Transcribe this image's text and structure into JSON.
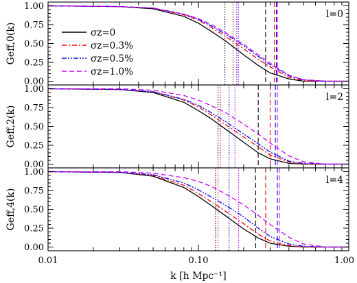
{
  "chart_data": {
    "type": "line",
    "xscale": "log",
    "xlim": [
      0.01,
      1.0
    ],
    "ylim": [
      -0.05,
      1.05
    ],
    "xlabel": "k [h Mpc⁻¹]",
    "xticks": [
      0.01,
      0.1,
      1.0
    ],
    "xtick_labels": [
      "0.01",
      "0.10",
      "1.00"
    ],
    "yticks": [
      0.0,
      0.25,
      0.5,
      0.75,
      1.0
    ],
    "ytick_labels": [
      "0.00",
      "0.25",
      "0.50",
      "0.75",
      "1.00"
    ],
    "legend": {
      "placement": "upper-left of top panel",
      "entries": [
        {
          "label": "σz=0",
          "color": "#000000",
          "dash": "solid"
        },
        {
          "label": "σz=0.3%",
          "color": "#ff0000",
          "dash": "dash-dot"
        },
        {
          "label": "σz=0.5%",
          "color": "#0000ff",
          "dash": "dash-dot-dot"
        },
        {
          "label": "σz=1.0%",
          "color": "#cc00ff",
          "dash": "dashed"
        }
      ]
    },
    "panels": [
      {
        "panel_label": "l=0",
        "ylabel": "Geff,0(k)",
        "series": [
          {
            "name": "σz=0",
            "color": "#000000",
            "style": "solid",
            "x": [
              0.01,
              0.03,
              0.05,
              0.08,
              0.1,
              0.12,
              0.15,
              0.2,
              0.25,
              0.3,
              0.4,
              0.5,
              0.7,
              1.0
            ],
            "y": [
              1.0,
              0.99,
              0.96,
              0.86,
              0.77,
              0.67,
              0.54,
              0.35,
              0.21,
              0.11,
              0.03,
              0.0,
              0.0,
              0.0
            ]
          },
          {
            "name": "σz=0.3%",
            "color": "#ff0000",
            "style": "dashdot",
            "x": [
              0.01,
              0.03,
              0.05,
              0.08,
              0.1,
              0.12,
              0.15,
              0.2,
              0.25,
              0.3,
              0.4,
              0.5,
              0.7,
              1.0
            ],
            "y": [
              1.0,
              0.99,
              0.97,
              0.88,
              0.81,
              0.72,
              0.6,
              0.43,
              0.29,
              0.19,
              0.05,
              0.01,
              0.0,
              0.0
            ]
          },
          {
            "name": "σz=0.5%",
            "color": "#0000ff",
            "style": "dashdotdot",
            "x": [
              0.01,
              0.03,
              0.05,
              0.08,
              0.1,
              0.12,
              0.15,
              0.2,
              0.25,
              0.3,
              0.4,
              0.5,
              0.7,
              1.0
            ],
            "y": [
              1.0,
              0.99,
              0.97,
              0.89,
              0.82,
              0.74,
              0.63,
              0.47,
              0.33,
              0.22,
              0.07,
              0.02,
              0.0,
              0.0
            ]
          },
          {
            "name": "σz=1.0%",
            "color": "#cc00ff",
            "style": "dashed",
            "x": [
              0.01,
              0.03,
              0.05,
              0.08,
              0.1,
              0.12,
              0.15,
              0.2,
              0.25,
              0.3,
              0.4,
              0.5,
              0.7,
              1.0
            ],
            "y": [
              1.0,
              0.99,
              0.97,
              0.89,
              0.83,
              0.76,
              0.65,
              0.49,
              0.35,
              0.24,
              0.08,
              0.02,
              0.0,
              0.0
            ]
          }
        ],
        "markers": [
          {
            "color": "#000000",
            "style": "dotted",
            "k": 0.15
          },
          {
            "color": "#ff0000",
            "style": "dotted",
            "k": 0.17
          },
          {
            "color": "#0000ff",
            "style": "dotted",
            "k": 0.18
          },
          {
            "color": "#cc00ff",
            "style": "dotted",
            "k": 0.185
          },
          {
            "color": "#000000",
            "style": "dashed",
            "k": 0.28
          },
          {
            "color": "#ff0000",
            "style": "dashed",
            "k": 0.32
          },
          {
            "color": "#0000ff",
            "style": "dashed",
            "k": 0.33
          },
          {
            "color": "#cc00ff",
            "style": "dashed",
            "k": 0.335
          }
        ]
      },
      {
        "panel_label": "l=2",
        "ylabel": "Geff,2(k)",
        "series": [
          {
            "name": "σz=0",
            "color": "#000000",
            "style": "solid",
            "x": [
              0.01,
              0.03,
              0.05,
              0.08,
              0.1,
              0.12,
              0.15,
              0.2,
              0.25,
              0.3,
              0.4,
              0.5,
              0.7,
              1.0
            ],
            "y": [
              1.0,
              0.99,
              0.95,
              0.82,
              0.71,
              0.61,
              0.47,
              0.29,
              0.15,
              0.07,
              0.01,
              0.0,
              0.0,
              0.0
            ]
          },
          {
            "name": "σz=0.3%",
            "color": "#ff0000",
            "style": "dashdot",
            "x": [
              0.01,
              0.03,
              0.05,
              0.08,
              0.1,
              0.12,
              0.15,
              0.2,
              0.25,
              0.3,
              0.4,
              0.5,
              0.7,
              1.0
            ],
            "y": [
              1.0,
              0.99,
              0.96,
              0.85,
              0.76,
              0.66,
              0.53,
              0.36,
              0.23,
              0.12,
              0.03,
              0.0,
              0.0,
              0.0
            ]
          },
          {
            "name": "σz=0.5%",
            "color": "#0000ff",
            "style": "dashdotdot",
            "x": [
              0.01,
              0.03,
              0.05,
              0.08,
              0.1,
              0.12,
              0.15,
              0.2,
              0.25,
              0.3,
              0.4,
              0.5,
              0.7,
              1.0
            ],
            "y": [
              1.0,
              0.99,
              0.96,
              0.86,
              0.78,
              0.69,
              0.57,
              0.4,
              0.27,
              0.16,
              0.04,
              0.01,
              0.0,
              0.0
            ]
          },
          {
            "name": "σz=1.0%",
            "color": "#cc00ff",
            "style": "dashed",
            "x": [
              0.01,
              0.03,
              0.05,
              0.08,
              0.1,
              0.12,
              0.15,
              0.2,
              0.25,
              0.3,
              0.4,
              0.5,
              0.7,
              1.0
            ],
            "y": [
              1.0,
              1.0,
              0.98,
              0.91,
              0.85,
              0.78,
              0.69,
              0.53,
              0.4,
              0.28,
              0.11,
              0.03,
              0.0,
              0.0
            ]
          }
        ],
        "markers": [
          {
            "color": "#000000",
            "style": "dotted",
            "k": 0.135
          },
          {
            "color": "#ff0000",
            "style": "dotted",
            "k": 0.14
          },
          {
            "color": "#0000ff",
            "style": "dotted",
            "k": 0.16
          },
          {
            "color": "#cc00ff",
            "style": "dotted",
            "k": 0.175
          },
          {
            "color": "#000000",
            "style": "dashed",
            "k": 0.25
          },
          {
            "color": "#ff0000",
            "style": "dashed",
            "k": 0.3
          },
          {
            "color": "#0000ff",
            "style": "dashed",
            "k": 0.325
          },
          {
            "color": "#cc00ff",
            "style": "dashed",
            "k": 0.335
          }
        ]
      },
      {
        "panel_label": "l=4",
        "ylabel": "Geff,4(k)",
        "series": [
          {
            "name": "σz=0",
            "color": "#000000",
            "style": "solid",
            "x": [
              0.01,
              0.03,
              0.05,
              0.08,
              0.1,
              0.12,
              0.15,
              0.2,
              0.25,
              0.3,
              0.4,
              0.5,
              0.7,
              1.0
            ],
            "y": [
              1.0,
              0.99,
              0.94,
              0.79,
              0.67,
              0.56,
              0.42,
              0.24,
              0.12,
              0.05,
              0.01,
              0.0,
              0.0,
              0.0
            ]
          },
          {
            "name": "σz=0.3%",
            "color": "#ff0000",
            "style": "dashdot",
            "x": [
              0.01,
              0.03,
              0.05,
              0.08,
              0.1,
              0.12,
              0.15,
              0.2,
              0.25,
              0.3,
              0.4,
              0.5,
              0.7,
              1.0
            ],
            "y": [
              1.0,
              0.99,
              0.95,
              0.82,
              0.71,
              0.61,
              0.48,
              0.31,
              0.17,
              0.08,
              0.02,
              0.0,
              0.0,
              0.0
            ]
          },
          {
            "name": "σz=0.5%",
            "color": "#0000ff",
            "style": "dashdotdot",
            "x": [
              0.01,
              0.03,
              0.05,
              0.08,
              0.1,
              0.12,
              0.15,
              0.2,
              0.25,
              0.3,
              0.4,
              0.5,
              0.7,
              1.0
            ],
            "y": [
              1.0,
              0.99,
              0.96,
              0.85,
              0.76,
              0.67,
              0.56,
              0.4,
              0.25,
              0.14,
              0.04,
              0.01,
              0.0,
              0.0
            ]
          },
          {
            "name": "σz=1.0%",
            "color": "#cc00ff",
            "style": "dashed",
            "x": [
              0.01,
              0.03,
              0.05,
              0.08,
              0.1,
              0.12,
              0.15,
              0.2,
              0.25,
              0.3,
              0.4,
              0.5,
              0.7,
              1.0
            ],
            "y": [
              1.0,
              1.0,
              0.98,
              0.92,
              0.87,
              0.81,
              0.71,
              0.56,
              0.42,
              0.3,
              0.13,
              0.04,
              0.0,
              0.0
            ]
          }
        ],
        "markers": [
          {
            "color": "#000000",
            "style": "dotted",
            "k": 0.13
          },
          {
            "color": "#ff0000",
            "style": "dotted",
            "k": 0.135
          },
          {
            "color": "#0000ff",
            "style": "dotted",
            "k": 0.16
          },
          {
            "color": "#cc00ff",
            "style": "dotted",
            "k": 0.185
          },
          {
            "color": "#000000",
            "style": "dashed",
            "k": 0.24
          },
          {
            "color": "#ff0000",
            "style": "dashed",
            "k": 0.28
          },
          {
            "color": "#0000ff",
            "style": "dashed",
            "k": 0.335
          },
          {
            "color": "#cc00ff",
            "style": "dashed",
            "k": 0.345
          }
        ]
      }
    ]
  }
}
